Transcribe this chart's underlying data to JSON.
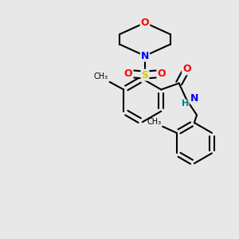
{
  "background_color": "#e8e8e8",
  "atom_colors": {
    "O": "#ff0000",
    "N": "#0000ff",
    "S": "#cccc00",
    "C": "#000000",
    "H": "#008080"
  },
  "bond_color": "#000000",
  "bond_width": 1.5,
  "fig_bg": "#e8e8e8"
}
